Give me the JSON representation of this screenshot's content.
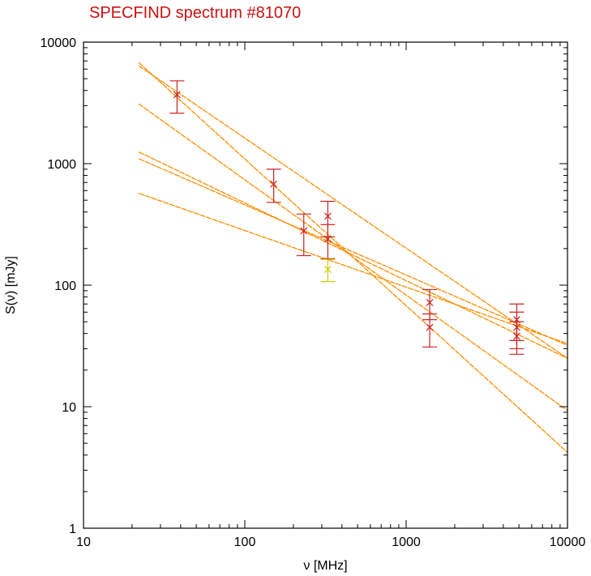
{
  "chart_data": {
    "type": "scatter",
    "title": "SPECFIND spectrum #81070",
    "xlabel": "ν [MHz]",
    "ylabel": "S(ν) [mJy]",
    "xscale": "log",
    "yscale": "log",
    "xlim": [
      10,
      10000
    ],
    "ylim": [
      1,
      10000
    ],
    "grid": false,
    "x_ticks": [
      {
        "value": 10,
        "label": "10"
      },
      {
        "value": 100,
        "label": "100"
      },
      {
        "value": 1000,
        "label": "1000"
      },
      {
        "value": 10000,
        "label": "10000"
      }
    ],
    "y_ticks": [
      {
        "value": 1,
        "label": "1"
      },
      {
        "value": 10,
        "label": "10"
      },
      {
        "value": 100,
        "label": "100"
      },
      {
        "value": 1000,
        "label": "1000"
      },
      {
        "value": 10000,
        "label": "10000"
      }
    ],
    "colors": {
      "title": "#cc1111",
      "points": "#cc2222",
      "highlight_point": "#cccc00",
      "fit_lines": "#ff8c00",
      "axes": "#000000"
    },
    "points": [
      {
        "x": 38,
        "y": 3700,
        "y_low": 2600,
        "y_high": 4800,
        "color": "#cc2222"
      },
      {
        "x": 151,
        "y": 680,
        "y_low": 480,
        "y_high": 900,
        "color": "#cc2222"
      },
      {
        "x": 232,
        "y": 280,
        "y_low": 175,
        "y_high": 385,
        "color": "#cc2222"
      },
      {
        "x": 327,
        "y": 370,
        "y_low": 250,
        "y_high": 490,
        "color": "#cc2222"
      },
      {
        "x": 327,
        "y": 240,
        "y_low": 165,
        "y_high": 315,
        "color": "#cc2222"
      },
      {
        "x": 327,
        "y": 135,
        "y_low": 107,
        "y_high": 163,
        "color": "#cccc00"
      },
      {
        "x": 1400,
        "y": 72,
        "y_low": 52,
        "y_high": 92,
        "color": "#cc2222"
      },
      {
        "x": 1400,
        "y": 45,
        "y_low": 31,
        "y_high": 58,
        "color": "#cc2222"
      },
      {
        "x": 4850,
        "y": 52,
        "y_low": 35,
        "y_high": 70,
        "color": "#cc2222"
      },
      {
        "x": 4850,
        "y": 45,
        "y_low": 30,
        "y_high": 60,
        "color": "#cc2222"
      },
      {
        "x": 4850,
        "y": 38,
        "y_low": 27,
        "y_high": 50,
        "color": "#cc2222"
      }
    ],
    "fit_lines": [
      {
        "x": [
          22,
          10000
        ],
        "y": [
          6800,
          4.2
        ]
      },
      {
        "x": [
          22,
          10000
        ],
        "y": [
          6400,
          25
        ]
      },
      {
        "x": [
          22,
          10000
        ],
        "y": [
          3100,
          9.3
        ]
      },
      {
        "x": [
          22,
          10000
        ],
        "y": [
          1250,
          25
        ]
      },
      {
        "x": [
          22,
          10000
        ],
        "y": [
          1100,
          32
        ]
      },
      {
        "x": [
          22,
          10000
        ],
        "y": [
          570,
          33
        ]
      }
    ]
  }
}
